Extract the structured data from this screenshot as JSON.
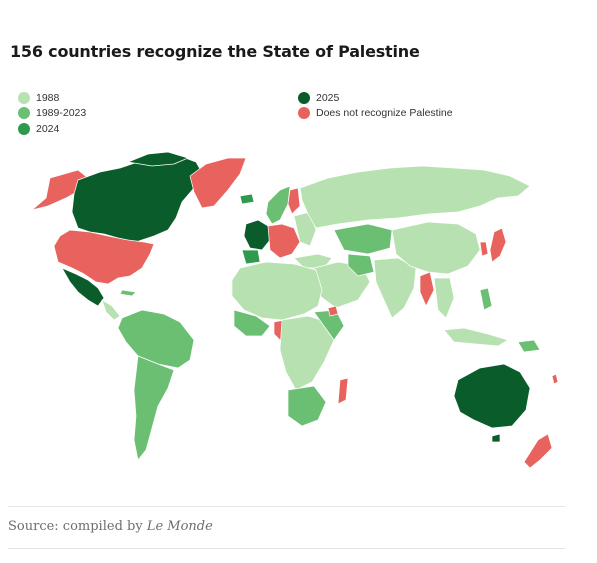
{
  "title": "156 countries recognize the State of Palestine",
  "legend": {
    "left": [
      {
        "label": "1988",
        "color": "#b8e1b1"
      },
      {
        "label": "1989-2023",
        "color": "#6bbf72"
      },
      {
        "label": "2024",
        "color": "#2f9a4c"
      }
    ],
    "right": [
      {
        "label": "2025",
        "color": "#0a5d2a"
      },
      {
        "label": "Does not recognize Palestine",
        "color": "#e8635e"
      }
    ]
  },
  "source": {
    "prefix": "Source: compiled by ",
    "publisher": "Le Monde"
  }
}
